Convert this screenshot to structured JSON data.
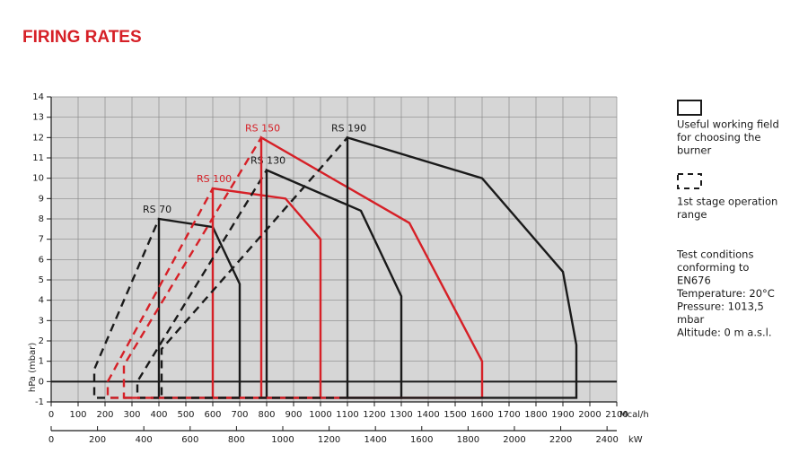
{
  "chart_data": {
    "type": "line",
    "title": "FIRING RATES",
    "y_label": "hPa (mbar)",
    "x_label": "Mcal/h",
    "x2_label": "kW",
    "xlim": [
      0,
      2100
    ],
    "xticks": [
      0,
      100,
      200,
      300,
      400,
      500,
      600,
      700,
      800,
      900,
      1000,
      1100,
      1200,
      1300,
      1400,
      1500,
      1600,
      1700,
      1800,
      1900,
      2000,
      2100
    ],
    "ylim": [
      -1,
      14
    ],
    "yticks": [
      -1,
      0,
      1,
      2,
      3,
      4,
      5,
      6,
      7,
      8,
      9,
      10,
      11,
      12,
      13,
      14
    ],
    "x2lim": [
      0,
      2442
    ],
    "x2ticks": [
      0,
      200,
      400,
      600,
      800,
      1000,
      1200,
      1400,
      1600,
      1800,
      2000,
      2200,
      2400
    ],
    "grid": true,
    "series": [
      {
        "name": "RS 70",
        "color": "#1a1a1a",
        "x": [
          400,
          400,
          600,
          700,
          700,
          400
        ],
        "values": [
          -0.8,
          8,
          7.6,
          4.8,
          -0.8,
          -0.8
        ],
        "first_stage_x": [
          400,
          160,
          160,
          400
        ],
        "first_stage_values": [
          -0.8,
          -0.8,
          0.6,
          8
        ]
      },
      {
        "name": "RS 100",
        "color": "#d62027",
        "x": [
          600,
          600,
          870,
          1000,
          1000,
          600
        ],
        "values": [
          -0.8,
          9.5,
          9,
          7,
          -0.8,
          -0.8
        ],
        "first_stage_x": [
          600,
          210,
          210,
          600
        ],
        "first_stage_values": [
          -0.8,
          -0.8,
          0,
          9.5
        ]
      },
      {
        "name": "RS 130",
        "color": "#1a1a1a",
        "x": [
          800,
          800,
          1150,
          1300,
          1300,
          800
        ],
        "values": [
          -0.8,
          10.4,
          8.4,
          4.2,
          -0.8,
          -0.8
        ],
        "first_stage_x": [
          800,
          320,
          320,
          800
        ],
        "first_stage_values": [
          -0.8,
          -0.8,
          0,
          10.4
        ]
      },
      {
        "name": "RS 150",
        "color": "#d62027",
        "x": [
          780,
          780,
          1330,
          1600,
          1600,
          780
        ],
        "values": [
          -0.8,
          12,
          7.8,
          1,
          -0.8,
          -0.8
        ],
        "first_stage_x": [
          780,
          270,
          270,
          780
        ],
        "first_stage_values": [
          -0.8,
          -0.8,
          0.8,
          12
        ]
      },
      {
        "name": "RS 190",
        "color": "#1a1a1a",
        "x": [
          1100,
          1100,
          1600,
          1900,
          1950,
          1950,
          1100
        ],
        "values": [
          -0.8,
          12,
          10,
          5.4,
          1.8,
          -0.8,
          -0.8
        ],
        "first_stage_x": [
          1100,
          410,
          410,
          1100
        ],
        "first_stage_values": [
          -0.8,
          -0.8,
          1.6,
          12
        ]
      }
    ],
    "legend": {
      "solid": [
        "Useful working field",
        "for choosing the",
        "burner"
      ],
      "dashed": [
        "1st stage operation",
        "range"
      ],
      "notes": [
        "Test conditions",
        "conforming to",
        "EN676",
        "Temperature: 20°C",
        "Pressure: 1013,5",
        "mbar",
        "Altitude: 0 m a.s.l."
      ]
    }
  }
}
